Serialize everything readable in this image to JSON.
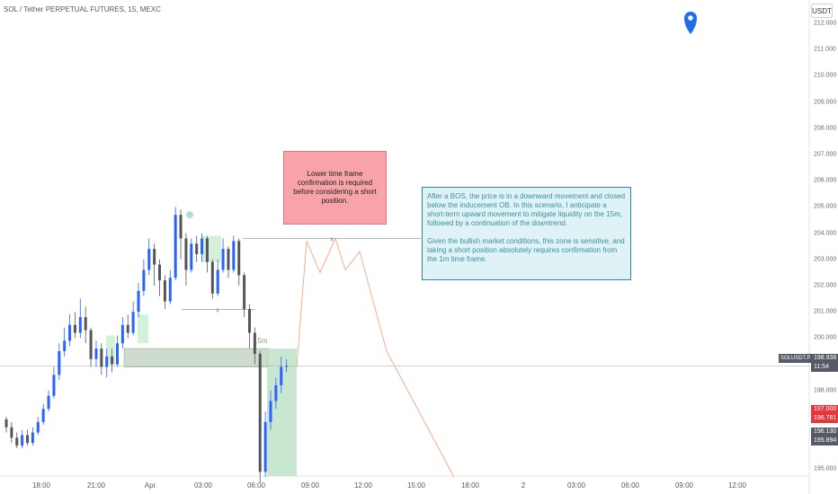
{
  "header": {
    "title": "SOL / Tether PERPETUAL FUTURES, 15, MEXC",
    "currency_button": "USDT"
  },
  "annotations": {
    "red_note": "Lower time frame confirmation is required before considering a short position.",
    "blue_note_p1": "After a BOS, the price is in a downward movement and closed below the inducement OB. In this scenario, I anticipate a short-term upward movement to mitigate liquidity on the 15m, followed by a continuation of the downtrend.",
    "blue_note_p2": "Given the bullish market conditions, this zone is sensitive, and taking a short position absolutely requires confirmation from the 1m time frame.",
    "timeframe_label": "15m",
    "marker_x": "x"
  },
  "price_scale": {
    "symbol_tag": "SOLUSDT.P",
    "last_price": "198.938",
    "countdown": "11:54",
    "red_label_1": "197.000",
    "red_label_2": "196.781",
    "gray_label_1": "196.130",
    "gray_label_2": "195.894"
  },
  "colors": {
    "up": "#2962ff",
    "down": "#555555",
    "projection": "#f4a582",
    "zone_green": "#b7dfc0",
    "zone_gray": "#c8d9c8",
    "pin": "#1e6ee8"
  },
  "chart_data": {
    "type": "candlestick",
    "symbol": "SOL / Tether PERPETUAL FUTURES",
    "interval": "15",
    "exchange": "MEXC",
    "y_ticks": [
      195.0,
      196.0,
      197.0,
      198.0,
      199.0,
      200.0,
      201.0,
      202.0,
      203.0,
      204.0,
      205.0,
      206.0,
      207.0,
      208.0,
      209.0,
      210.0,
      211.0,
      212.0
    ],
    "y_tick_labels": [
      "195.000",
      "196.000",
      "197.000",
      "198.000",
      "199.000",
      "200.000",
      "201.000",
      "202.000",
      "203.000",
      "204.000",
      "205.000",
      "206.000",
      "207.000",
      "208.000",
      "209.000",
      "210.000",
      "211.000",
      "212.000"
    ],
    "ylim": [
      194.5,
      212.7
    ],
    "x_tick_labels": [
      "18:00",
      "21:00",
      "Apr",
      "03:00",
      "06:00",
      "09:00",
      "12:00",
      "15:00",
      "18:00",
      "2",
      "03:00",
      "06:00",
      "09:00",
      "12:00"
    ],
    "last_price": 198.938,
    "candles": [
      [
        196.9,
        196.6,
        197.0,
        196.4
      ],
      [
        196.6,
        196.2,
        196.8,
        196.0
      ],
      [
        196.2,
        195.9,
        196.4,
        195.8
      ],
      [
        195.9,
        196.3,
        196.5,
        195.8
      ],
      [
        196.3,
        196.0,
        196.5,
        195.9
      ],
      [
        196.0,
        196.4,
        196.6,
        195.9
      ],
      [
        196.4,
        196.8,
        197.0,
        196.3
      ],
      [
        196.8,
        197.3,
        197.5,
        196.7
      ],
      [
        197.3,
        197.8,
        198.0,
        197.2
      ],
      [
        197.8,
        198.6,
        198.9,
        197.7
      ],
      [
        198.6,
        199.5,
        199.8,
        198.4
      ],
      [
        199.5,
        199.9,
        200.4,
        199.3
      ],
      [
        199.9,
        200.5,
        200.9,
        199.7
      ],
      [
        200.5,
        200.2,
        201.0,
        200.0
      ],
      [
        200.2,
        200.8,
        201.5,
        200.0
      ],
      [
        200.8,
        200.3,
        201.2,
        199.8
      ],
      [
        200.3,
        199.2,
        200.4,
        198.9
      ],
      [
        199.2,
        199.6,
        199.9,
        198.9
      ],
      [
        199.6,
        198.9,
        199.8,
        198.6
      ],
      [
        198.9,
        199.3,
        199.6,
        198.5
      ],
      [
        199.3,
        199.0,
        199.6,
        198.7
      ],
      [
        199.0,
        199.8,
        200.1,
        198.9
      ],
      [
        199.8,
        200.5,
        200.8,
        199.6
      ],
      [
        200.5,
        200.2,
        200.9,
        200.0
      ],
      [
        200.2,
        201.0,
        201.4,
        200.1
      ],
      [
        201.0,
        201.8,
        202.1,
        200.8
      ],
      [
        201.8,
        202.6,
        203.0,
        201.6
      ],
      [
        202.6,
        203.4,
        203.8,
        202.4
      ],
      [
        203.4,
        202.8,
        203.6,
        202.0
      ],
      [
        202.8,
        202.2,
        203.0,
        201.6
      ],
      [
        202.2,
        201.4,
        202.4,
        201.1
      ],
      [
        201.4,
        202.3,
        202.6,
        201.3
      ],
      [
        202.3,
        204.7,
        205.0,
        202.2
      ],
      [
        204.7,
        203.8,
        204.9,
        203.0
      ],
      [
        203.8,
        202.6,
        204.0,
        202.0
      ],
      [
        202.6,
        203.6,
        203.8,
        202.5
      ],
      [
        203.6,
        203.2,
        203.9,
        202.9
      ],
      [
        203.2,
        203.8,
        204.0,
        202.9
      ],
      [
        203.8,
        202.9,
        203.9,
        202.5
      ],
      [
        202.9,
        201.7,
        203.0,
        201.5
      ],
      [
        201.7,
        202.6,
        203.0,
        201.6
      ],
      [
        202.6,
        203.4,
        203.8,
        202.5
      ],
      [
        203.4,
        202.6,
        203.5,
        202.3
      ],
      [
        202.6,
        203.7,
        203.9,
        202.5
      ],
      [
        203.7,
        202.4,
        203.8,
        202.0
      ],
      [
        202.4,
        201.1,
        202.5,
        200.8
      ],
      [
        201.1,
        200.2,
        201.3,
        199.6
      ],
      [
        200.2,
        199.4,
        200.4,
        199.0
      ],
      [
        199.4,
        194.9,
        199.5,
        194.5
      ],
      [
        194.9,
        196.8,
        197.2,
        194.7
      ],
      [
        196.8,
        197.6,
        198.0,
        196.5
      ],
      [
        197.6,
        198.2,
        198.5,
        197.3
      ],
      [
        198.2,
        198.9,
        199.3,
        197.9
      ],
      [
        198.9,
        198.938,
        199.2,
        198.7
      ]
    ],
    "zones": [
      {
        "type": "order_block",
        "y_from": 198.9,
        "y_to": 199.6
      },
      {
        "type": "demand",
        "y_from": 194.9,
        "y_to": 199.6
      }
    ],
    "projection_path": [
      [
        0,
        198.9
      ],
      [
        1,
        203.7
      ],
      [
        2,
        202.5
      ],
      [
        3,
        203.8
      ],
      [
        4,
        202.6
      ],
      [
        5,
        203.3
      ],
      [
        6,
        199.5
      ],
      [
        7,
        194.7
      ]
    ]
  }
}
